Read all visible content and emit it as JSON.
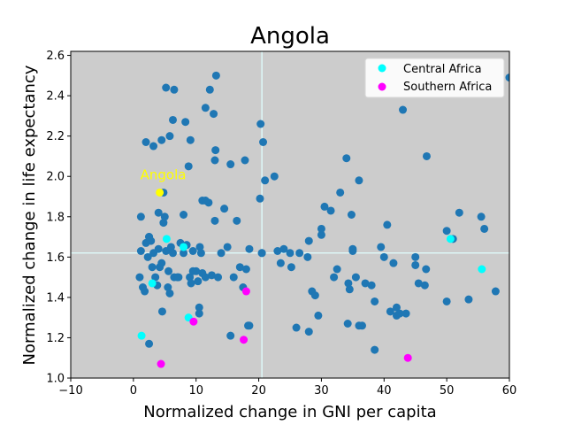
{
  "chart_data": {
    "type": "scatter",
    "title": "Angola",
    "xlabel": "Normalized change in GNI per capita",
    "ylabel": "Normalized change in life expectancy",
    "xlim": [
      -10,
      60
    ],
    "ylim": [
      1.0,
      2.62
    ],
    "xticks": [
      -10,
      0,
      10,
      20,
      30,
      40,
      50,
      60
    ],
    "yticks": [
      1.0,
      1.2,
      1.4,
      1.6,
      1.8,
      2.0,
      2.2,
      2.4,
      2.6
    ],
    "grid": false,
    "background": "#cccccc",
    "reference_lines": {
      "x": 20.5,
      "y": 1.62,
      "color": "#e0ffff"
    },
    "legend_position": "top-right",
    "annotation": {
      "text": "Angola",
      "x": 4.2,
      "y": 1.92,
      "color": "#ffff00"
    },
    "series": [
      {
        "color": "#1f77b4",
        "points": [
          [
            1,
            1.5
          ],
          [
            1.2,
            1.63
          ],
          [
            1.5,
            1.45
          ],
          [
            1.8,
            1.43
          ],
          [
            2,
            1.67
          ],
          [
            2.3,
            1.6
          ],
          [
            2.5,
            1.7
          ],
          [
            2.8,
            1.68
          ],
          [
            3,
            1.55
          ],
          [
            3.2,
            1.62
          ],
          [
            3.5,
            1.5
          ],
          [
            3.8,
            1.46
          ],
          [
            4,
            1.64
          ],
          [
            4.2,
            1.55
          ],
          [
            4.5,
            1.57
          ],
          [
            4.8,
            1.77
          ],
          [
            5,
            1.8
          ],
          [
            5.2,
            1.63
          ],
          [
            5.5,
            1.45
          ],
          [
            5.8,
            1.42
          ],
          [
            6,
            1.65
          ],
          [
            6.3,
            1.62
          ],
          [
            6.5,
            1.5
          ],
          [
            7,
            1.5
          ],
          [
            7.5,
            1.67
          ],
          [
            8,
            1.81
          ],
          [
            8.5,
            1.66
          ],
          [
            9,
            1.5
          ],
          [
            9.2,
            1.47
          ],
          [
            9.5,
            1.63
          ],
          [
            10,
            1.53
          ],
          [
            10.3,
            1.48
          ],
          [
            10.5,
            1.35
          ],
          [
            10.5,
            1.32
          ],
          [
            10.8,
            1.62
          ],
          [
            11,
            1.52
          ],
          [
            11.5,
            1.5
          ],
          [
            12,
            1.87
          ],
          [
            12.5,
            1.51
          ],
          [
            13,
            1.78
          ],
          [
            13.5,
            1.5
          ],
          [
            14,
            1.62
          ],
          [
            14.5,
            1.84
          ],
          [
            15,
            1.65
          ],
          [
            15.5,
            1.21
          ],
          [
            16,
            1.5
          ],
          [
            16.5,
            1.78
          ],
          [
            17,
            1.55
          ],
          [
            17.5,
            1.45
          ],
          [
            18,
            1.54
          ],
          [
            18.3,
            1.26
          ],
          [
            18.5,
            1.64
          ],
          [
            20.2,
            1.89
          ],
          [
            20.5,
            1.62
          ],
          [
            21,
            1.98
          ],
          [
            22.5,
            2.0
          ],
          [
            23,
            1.63
          ],
          [
            23.5,
            1.57
          ],
          [
            24,
            1.64
          ],
          [
            25,
            1.62
          ],
          [
            25.2,
            1.55
          ],
          [
            26,
            1.25
          ],
          [
            26.5,
            1.62
          ],
          [
            28,
            1.68
          ],
          [
            28,
            1.23
          ],
          [
            28.5,
            1.43
          ],
          [
            29,
            1.41
          ],
          [
            29.5,
            1.31
          ],
          [
            30,
            1.71
          ],
          [
            30,
            1.74
          ],
          [
            30.5,
            1.85
          ],
          [
            31.5,
            1.83
          ],
          [
            32,
            1.5
          ],
          [
            32.5,
            1.54
          ],
          [
            33,
            1.92
          ],
          [
            34,
            2.09
          ],
          [
            34.2,
            1.27
          ],
          [
            34.5,
            1.44
          ],
          [
            34.8,
            1.81
          ],
          [
            35,
            1.63
          ],
          [
            35,
            1.64
          ],
          [
            35.5,
            1.5
          ],
          [
            36,
            1.98
          ],
          [
            36.5,
            1.26
          ],
          [
            37,
            1.47
          ],
          [
            38,
            1.46
          ],
          [
            38.5,
            1.38
          ],
          [
            39.5,
            1.65
          ],
          [
            38.5,
            1.14
          ],
          [
            40,
            1.6
          ],
          [
            40.5,
            1.76
          ],
          [
            41,
            1.33
          ],
          [
            41.5,
            1.57
          ],
          [
            42,
            1.35
          ],
          [
            42,
            1.31
          ],
          [
            42.5,
            1.32
          ],
          [
            43,
            2.33
          ],
          [
            43.5,
            1.32
          ],
          [
            45,
            1.56
          ],
          [
            45,
            1.6
          ],
          [
            45.5,
            1.47
          ],
          [
            46.5,
            1.46
          ],
          [
            46.7,
            1.54
          ],
          [
            46.8,
            2.1
          ],
          [
            50,
            1.38
          ],
          [
            50,
            1.73
          ],
          [
            51,
            1.69
          ],
          [
            52,
            1.82
          ],
          [
            53.5,
            1.39
          ],
          [
            55.5,
            1.8
          ],
          [
            56,
            1.74
          ],
          [
            57.8,
            1.43
          ],
          [
            60,
            2.49
          ],
          [
            1.2,
            1.8
          ],
          [
            2,
            2.17
          ],
          [
            3.2,
            2.15
          ],
          [
            4.5,
            2.18
          ],
          [
            5.2,
            2.44
          ],
          [
            6.5,
            2.43
          ],
          [
            5.8,
            2.2
          ],
          [
            6.3,
            2.28
          ],
          [
            8.3,
            2.27
          ],
          [
            9.1,
            2.18
          ],
          [
            8.8,
            2.05
          ],
          [
            11.5,
            2.34
          ],
          [
            12.2,
            2.43
          ],
          [
            12.8,
            2.31
          ],
          [
            13.2,
            2.5
          ],
          [
            13.1,
            2.13
          ],
          [
            13,
            2.08
          ],
          [
            15.5,
            2.06
          ],
          [
            17.8,
            2.08
          ],
          [
            20.3,
            2.26
          ],
          [
            20.7,
            2.17
          ],
          [
            4,
            1.82
          ],
          [
            2.5,
            1.7
          ],
          [
            4.8,
            1.92
          ],
          [
            8,
            1.62
          ],
          [
            11,
            1.88
          ],
          [
            11.5,
            1.88
          ],
          [
            10.6,
            1.65
          ],
          [
            9.5,
            1.53
          ],
          [
            5.6,
            1.53
          ],
          [
            4.6,
            1.33
          ],
          [
            2.5,
            1.17
          ],
          [
            7.2,
            1.5
          ],
          [
            20.5,
            1.62
          ],
          [
            27.8,
            1.6
          ],
          [
            34.3,
            1.47
          ],
          [
            36,
            1.26
          ],
          [
            18.5,
            1.26
          ]
        ]
      },
      {
        "name": "Central Africa",
        "color": "#00ffff",
        "points": [
          [
            1.3,
            1.21
          ],
          [
            3,
            1.47
          ],
          [
            5.3,
            1.69
          ],
          [
            8,
            1.65
          ],
          [
            8.8,
            1.3
          ],
          [
            50.6,
            1.69
          ],
          [
            55.6,
            1.54
          ]
        ]
      },
      {
        "name": "Southern Africa",
        "color": "#ff00ff",
        "points": [
          [
            4.4,
            1.07
          ],
          [
            9.6,
            1.28
          ],
          [
            17.6,
            1.19
          ],
          [
            18,
            1.43
          ],
          [
            43.8,
            1.1
          ]
        ]
      },
      {
        "name": "Angola",
        "color": "#ffff00",
        "points": [
          [
            4.2,
            1.92
          ]
        ]
      }
    ]
  }
}
